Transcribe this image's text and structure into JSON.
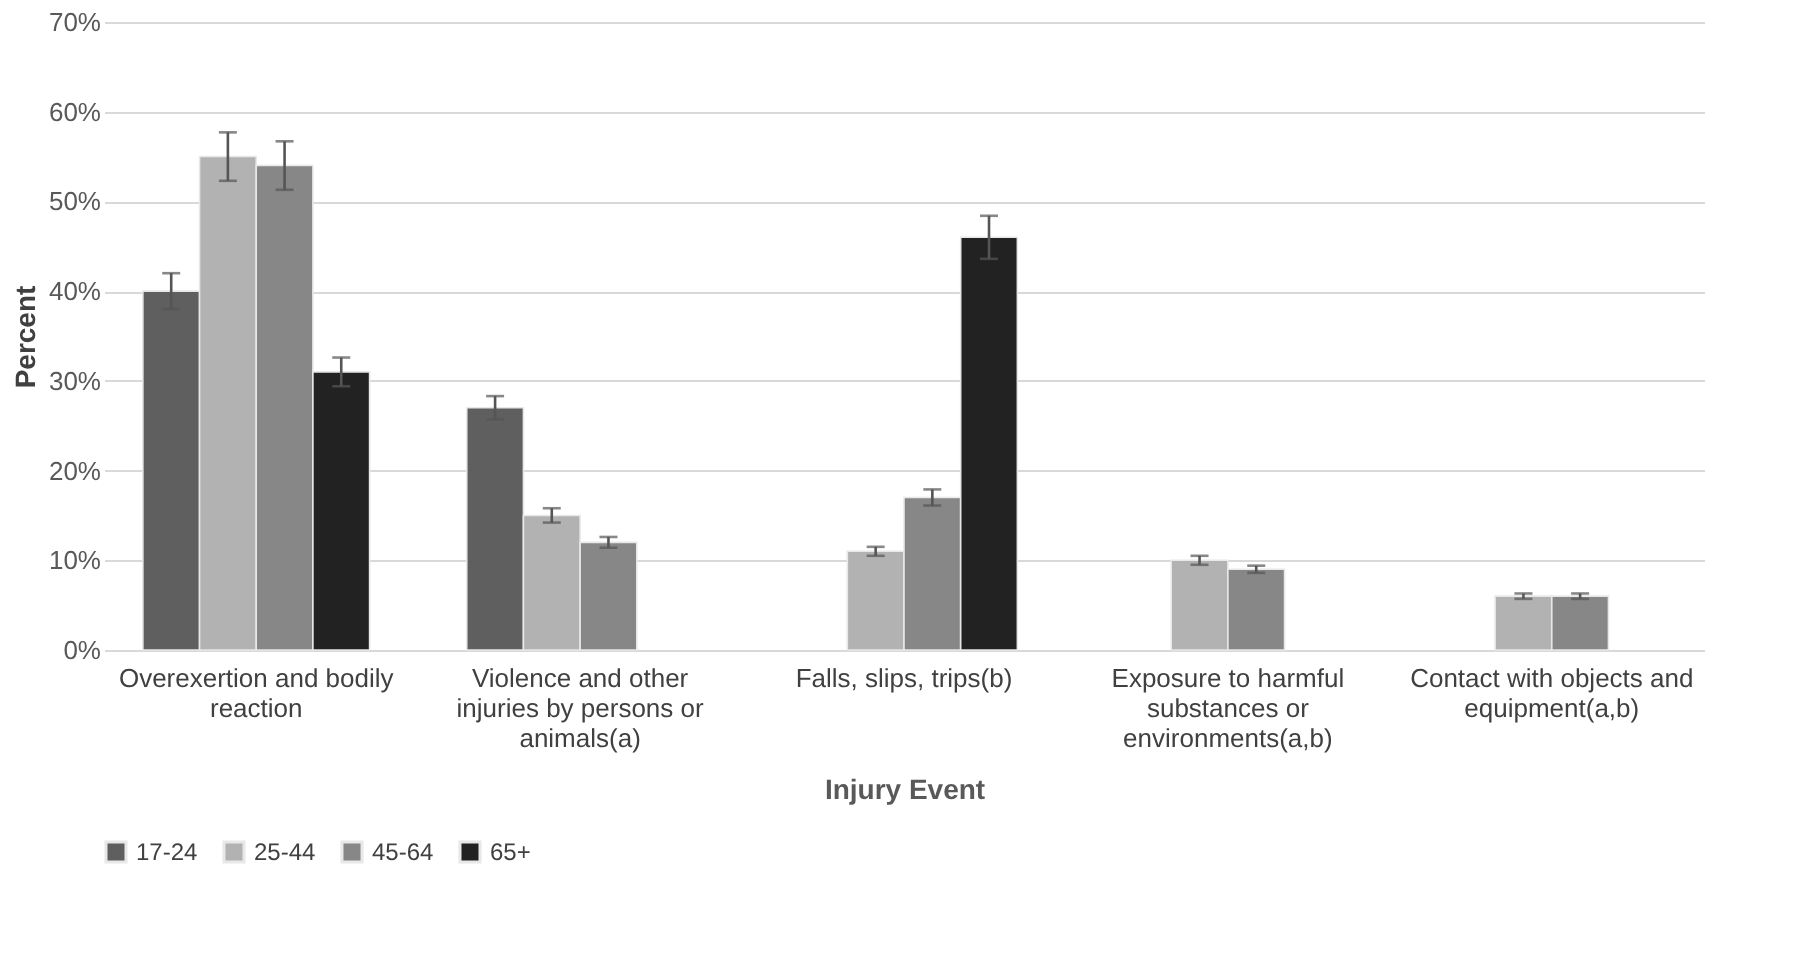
{
  "chart_data": {
    "type": "bar",
    "xlabel": "Injury Event",
    "ylabel": "Percent",
    "categories": [
      "Overexertion and bodily reaction",
      "Violence and other injuries by persons or animals(a)",
      "Falls, slips, trips(b)",
      "Exposure to harmful substances or environments(a,b)",
      "Contact with objects and equipment(a,b)"
    ],
    "series": [
      {
        "name": "17-24",
        "color": "#5f5f5f",
        "values": [
          40,
          27,
          null,
          null,
          null
        ],
        "errors": [
          2,
          1.3,
          null,
          null,
          null
        ]
      },
      {
        "name": "25-44",
        "color": "#b2b2b2",
        "values": [
          55,
          15,
          11,
          10,
          6
        ],
        "errors": [
          2.7,
          0.8,
          0.5,
          0.5,
          0.3
        ]
      },
      {
        "name": "45-64",
        "color": "#878787",
        "values": [
          54,
          12,
          17,
          9,
          6
        ],
        "errors": [
          2.7,
          0.6,
          0.9,
          0.4,
          0.3
        ]
      },
      {
        "name": "65+",
        "color": "#222222",
        "values": [
          31,
          null,
          46,
          null,
          null
        ],
        "errors": [
          1.6,
          null,
          2.4,
          null,
          null
        ]
      }
    ],
    "ylim": [
      0,
      70
    ],
    "yticks": [
      {
        "value": 0,
        "label": "0%"
      },
      {
        "value": 10,
        "label": "10%"
      },
      {
        "value": 20,
        "label": "20%"
      },
      {
        "value": 30,
        "label": "30%"
      },
      {
        "value": 40,
        "label": "40%"
      },
      {
        "value": 50,
        "label": "50%"
      },
      {
        "value": 60,
        "label": "60%"
      },
      {
        "value": 70,
        "label": "70%"
      }
    ],
    "grid": "y",
    "legend": "bottom"
  }
}
